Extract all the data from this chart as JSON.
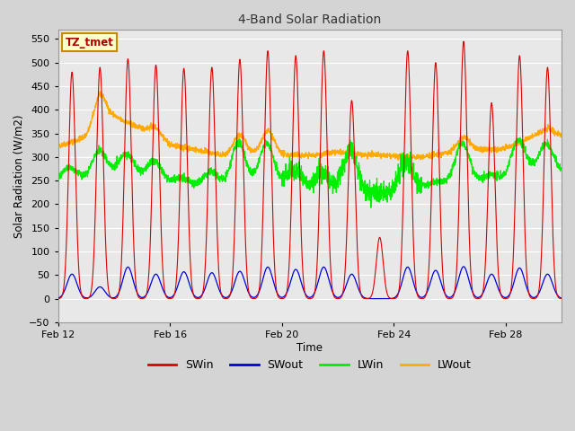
{
  "title": "4-Band Solar Radiation",
  "xlabel": "Time",
  "ylabel": "Solar Radiation (W/m2)",
  "annotation": "TZ_tmet",
  "ylim": [
    -50,
    570
  ],
  "yticks": [
    -50,
    0,
    50,
    100,
    150,
    200,
    250,
    300,
    350,
    400,
    450,
    500,
    550
  ],
  "xtick_labels": [
    "Feb 12",
    "Feb 16",
    "Feb 20",
    "Feb 24",
    "Feb 28"
  ],
  "xtick_positions": [
    0,
    4,
    8,
    12,
    16
  ],
  "colors": {
    "SWin": "#dd0000",
    "SWout": "#0000dd",
    "LWin": "#00ee00",
    "LWout": "#ffaa00"
  },
  "fig_bg": "#d4d4d4",
  "plot_bg": "#e8e8e8",
  "annotation_bg": "#ffffcc",
  "annotation_border": "#cc8800",
  "n_days": 18,
  "pts_per_day": 144,
  "SWin_peaks": [
    480,
    490,
    508,
    495,
    488,
    490,
    507,
    525,
    515,
    525,
    420,
    130,
    525,
    500,
    545,
    415,
    515,
    490
  ],
  "SWout_peaks": [
    52,
    25,
    67,
    52,
    57,
    55,
    58,
    67,
    62,
    67,
    52,
    0,
    67,
    60,
    68,
    52,
    65,
    52
  ],
  "LWout_baseline": [
    323,
    342,
    385,
    360,
    325,
    315,
    302,
    305,
    305,
    303,
    310,
    305,
    302,
    300,
    310,
    315,
    318,
    345
  ],
  "LWout_day_peaks": [
    0,
    410,
    0,
    380,
    0,
    0,
    345,
    355,
    0,
    0,
    0,
    0,
    0,
    290,
    340,
    310,
    0,
    360
  ],
  "LWin_baseline": [
    255,
    250,
    270,
    262,
    248,
    238,
    240,
    242,
    245,
    235,
    230,
    223,
    228,
    235,
    245,
    248,
    252,
    270
  ],
  "LWin_day_peaks": [
    280,
    305,
    310,
    298,
    260,
    268,
    330,
    328,
    278,
    272,
    318,
    198,
    288,
    242,
    328,
    262,
    328,
    328
  ]
}
